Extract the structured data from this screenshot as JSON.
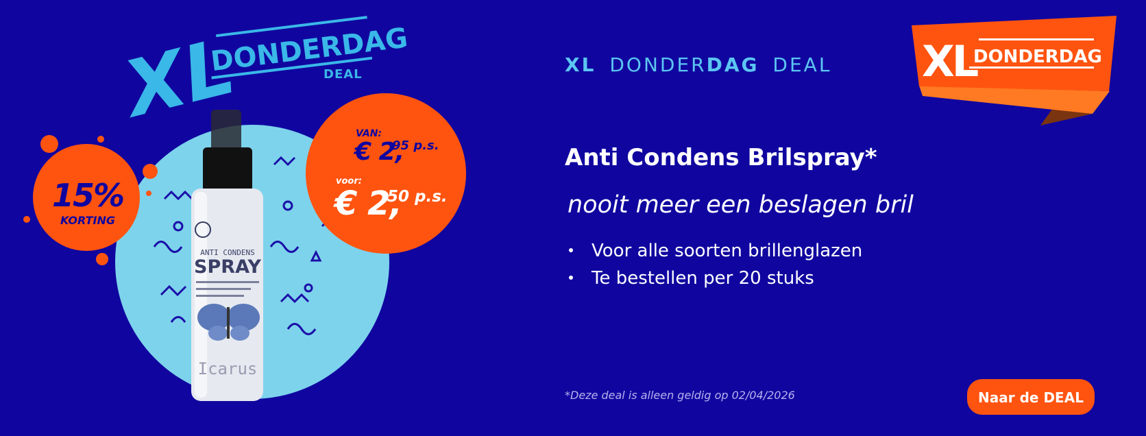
{
  "logo_left": {
    "xl": "XL",
    "name": "DONDERDAG",
    "tag": "DEAL"
  },
  "badge": {
    "percent": "15%",
    "label": "KORTING"
  },
  "price": {
    "from_label": "VAN:",
    "from_euro": "€ 2,",
    "from_cents": "95 p.s.",
    "to_label": "voor:",
    "to_euro": "€ 2,",
    "to_cents": "50 p.s."
  },
  "product_image": {
    "line1": "ANTI CONDENS",
    "line2": "SPRAY",
    "brand": "Icarus"
  },
  "header": {
    "parts": [
      "XL",
      "DONDER",
      "DAG",
      "DEAL"
    ]
  },
  "title": "Anti Condens Brilspray*",
  "subtitle": "nooit meer een beslagen bril",
  "bullets": [
    "Voor alle soorten brillenglazen",
    "Te bestellen per 20 stuks"
  ],
  "footnote": "*Deze deal is alleen geldig op 02/04/2026",
  "button": "Naar de DEAL",
  "logo_right": {
    "xl": "XL",
    "name": "DONDERDAG"
  }
}
